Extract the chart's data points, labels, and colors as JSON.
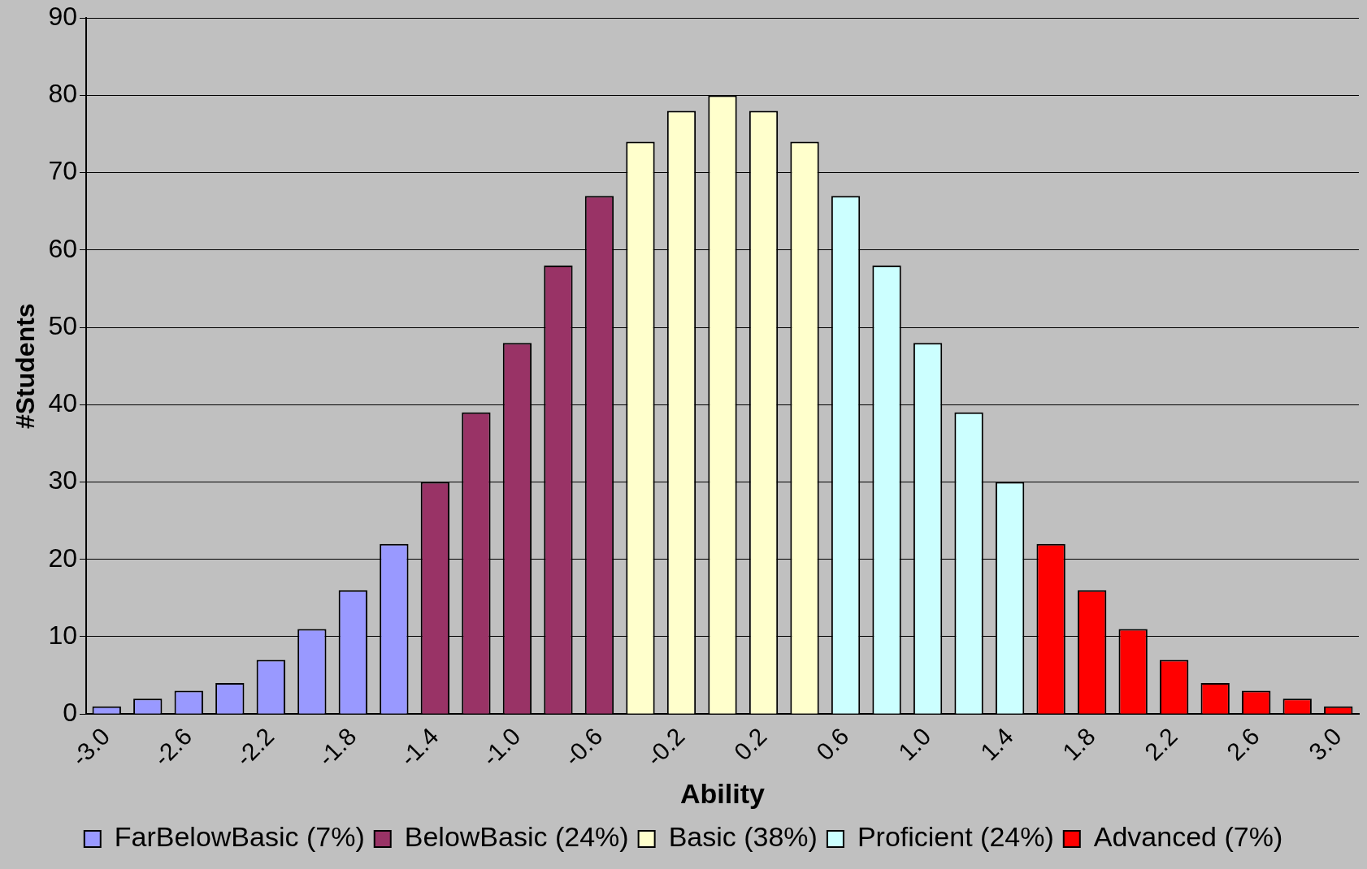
{
  "chart_data": {
    "type": "bar",
    "xlabel": "Ability",
    "ylabel": "#Students",
    "categories": [
      "-3.0",
      null,
      "-2.6",
      null,
      "-2.2",
      null,
      "-1.8",
      null,
      "-1.4",
      null,
      "-1.0",
      null,
      "-0.6",
      null,
      "-0.2",
      null,
      "0.2",
      null,
      "0.6",
      null,
      "1.0",
      null,
      "1.4",
      null,
      "1.8",
      null,
      "2.2",
      null,
      "2.6",
      null,
      "3.0"
    ],
    "series": [
      {
        "name": "FarBelowBasic (7%)",
        "color": "#9999ff",
        "values": [
          1,
          2,
          3,
          4,
          7,
          11,
          16,
          22,
          null,
          null,
          null,
          null,
          null,
          null,
          null,
          null,
          null,
          null,
          null,
          null,
          null,
          null,
          null,
          null,
          null,
          null,
          null,
          null,
          null,
          null,
          null
        ]
      },
      {
        "name": "BelowBasic (24%)",
        "color": "#993366",
        "values": [
          null,
          null,
          null,
          null,
          null,
          null,
          null,
          null,
          30,
          39,
          48,
          58,
          67,
          null,
          null,
          null,
          null,
          null,
          null,
          null,
          null,
          null,
          null,
          null,
          null,
          null,
          null,
          null,
          null,
          null,
          null
        ]
      },
      {
        "name": "Basic (38%)",
        "color": "#ffffcc",
        "values": [
          null,
          null,
          null,
          null,
          null,
          null,
          null,
          null,
          null,
          null,
          null,
          null,
          null,
          74,
          78,
          80,
          78,
          74,
          null,
          null,
          null,
          null,
          null,
          null,
          null,
          null,
          null,
          null,
          null,
          null,
          null
        ]
      },
      {
        "name": "Proficient (24%)",
        "color": "#ccffff",
        "values": [
          null,
          null,
          null,
          null,
          null,
          null,
          null,
          null,
          null,
          null,
          null,
          null,
          null,
          null,
          null,
          null,
          null,
          null,
          67,
          58,
          48,
          39,
          30,
          null,
          null,
          null,
          null,
          null,
          null,
          null,
          null
        ]
      },
      {
        "name": "Advanced (7%)",
        "color": "#ff0000",
        "values": [
          null,
          null,
          null,
          null,
          null,
          null,
          null,
          null,
          null,
          null,
          null,
          null,
          null,
          null,
          null,
          null,
          null,
          null,
          null,
          null,
          null,
          null,
          null,
          22,
          16,
          11,
          7,
          4,
          3,
          2,
          1
        ]
      }
    ],
    "ylim": [
      0,
      90
    ],
    "yticks": [
      0,
      10,
      20,
      30,
      40,
      50,
      60,
      70,
      80,
      90
    ],
    "grid": "y",
    "legend": "bottom"
  }
}
